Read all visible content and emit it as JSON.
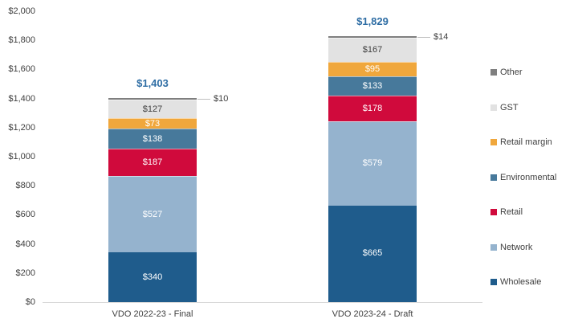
{
  "chart_data": {
    "type": "bar",
    "subtype": "stacked-column",
    "title": "",
    "xlabel": "",
    "ylabel": "",
    "grid": false,
    "categories": [
      "VDO 2022-23 - Final",
      "VDO 2023-24 - Draft"
    ],
    "series": [
      {
        "name": "Wholesale",
        "color": "#1F5C8C",
        "text_color": "#FFFFFF",
        "values": [
          340,
          665
        ],
        "labels": [
          "$340",
          "$665"
        ]
      },
      {
        "name": "Network",
        "color": "#95B3CE",
        "text_color": "#FFFFFF",
        "values": [
          527,
          579
        ],
        "labels": [
          "$527",
          "$579"
        ]
      },
      {
        "name": "Retail",
        "color": "#D00A3C",
        "text_color": "#FFFFFF",
        "values": [
          187,
          178
        ],
        "labels": [
          "$187",
          "$178"
        ]
      },
      {
        "name": "Environmental",
        "color": "#47799B",
        "text_color": "#FFFFFF",
        "values": [
          138,
          133
        ],
        "labels": [
          "$138",
          "$133"
        ]
      },
      {
        "name": "Retail margin",
        "color": "#F0A73C",
        "text_color": "#FFFFFF",
        "values": [
          73,
          95
        ],
        "labels": [
          "$73",
          "$95"
        ]
      },
      {
        "name": "GST",
        "color": "#E2E2E2",
        "text_color": "#404040",
        "values": [
          127,
          167
        ],
        "labels": [
          "$127",
          "$167"
        ]
      },
      {
        "name": "Other",
        "color": "#7F7F7F",
        "text_color": "#404040",
        "values": [
          10,
          14
        ],
        "labels": [
          "$10",
          "$14"
        ],
        "label_outside": true
      }
    ],
    "totals": {
      "values": [
        1403,
        1829
      ],
      "labels": [
        "$1,403",
        "$1,829"
      ],
      "color": "#2E6DA4"
    },
    "y_axis": {
      "min": 0,
      "max": 2000,
      "step": 200,
      "tick_labels": [
        "$0",
        "$200",
        "$400",
        "$600",
        "$800",
        "$1,000",
        "$1,200",
        "$1,400",
        "$1,600",
        "$1,800",
        "$2,000"
      ]
    },
    "legend": {
      "position": "right",
      "items": [
        "Other",
        "GST",
        "Retail margin",
        "Environmental",
        "Retail",
        "Network",
        "Wholesale"
      ]
    }
  },
  "colors": {
    "background": "#FFFFFF",
    "axis_text": "#404040",
    "axis_line": "#D9D9D9",
    "leader_line": "#BFBFBF"
  }
}
